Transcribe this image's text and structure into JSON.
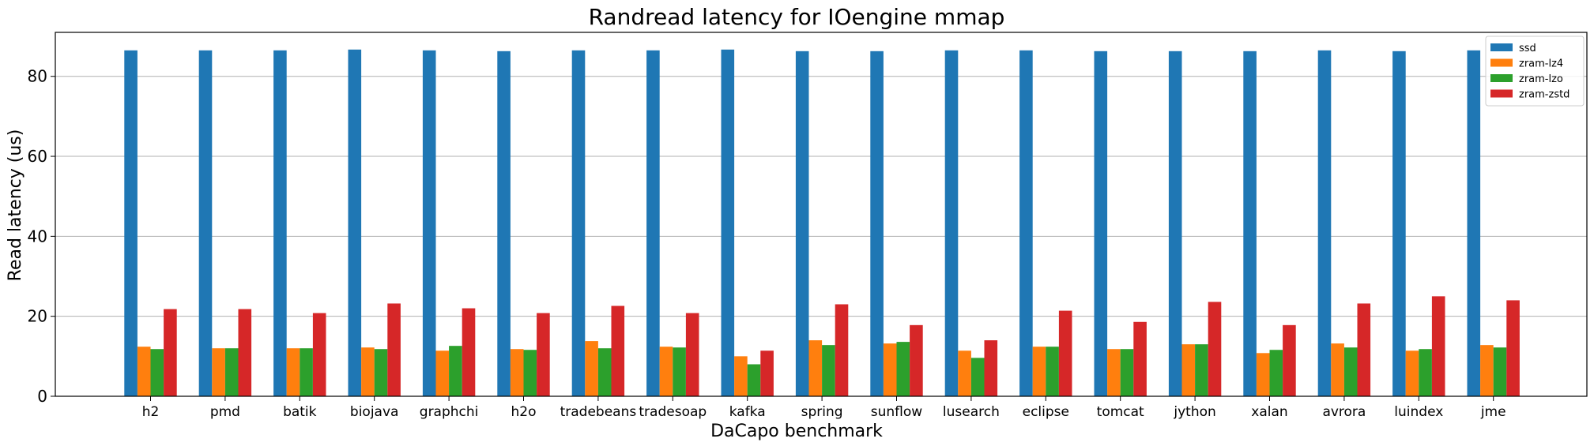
{
  "chart_data": {
    "type": "bar",
    "title": "Randread latency for IOengine mmap",
    "xlabel": "DaCapo benchmark",
    "ylabel": "Read latency (us)",
    "ylim": [
      0,
      91
    ],
    "yticks": [
      0,
      20,
      40,
      60,
      80
    ],
    "grid": "y",
    "legend_position": "top-right",
    "categories": [
      "h2",
      "pmd",
      "batik",
      "biojava",
      "graphchi",
      "h2o",
      "tradebeans",
      "tradesoap",
      "kafka",
      "spring",
      "sunflow",
      "lusearch",
      "eclipse",
      "tomcat",
      "jython",
      "xalan",
      "avrora",
      "luindex",
      "jme"
    ],
    "series": [
      {
        "name": "ssd",
        "color": "#1f77b4",
        "values": [
          86.5,
          86.5,
          86.5,
          86.7,
          86.5,
          86.3,
          86.5,
          86.5,
          86.7,
          86.3,
          86.3,
          86.5,
          86.5,
          86.3,
          86.3,
          86.3,
          86.5,
          86.3,
          86.5
        ]
      },
      {
        "name": "zram-lz4",
        "color": "#ff7f0e",
        "values": [
          12.4,
          12.0,
          12.0,
          12.2,
          11.4,
          11.8,
          13.8,
          12.4,
          10.0,
          14.0,
          13.2,
          11.4,
          12.4,
          11.8,
          13.0,
          10.8,
          13.2,
          11.4,
          12.8
        ]
      },
      {
        "name": "zram-lzo",
        "color": "#2ca02c",
        "values": [
          11.8,
          12.0,
          12.0,
          11.8,
          12.6,
          11.6,
          12.0,
          12.2,
          8.0,
          12.8,
          13.6,
          9.6,
          12.4,
          11.8,
          13.0,
          11.6,
          12.2,
          11.8,
          12.2
        ]
      },
      {
        "name": "zram-zstd",
        "color": "#d62728",
        "values": [
          21.8,
          21.8,
          20.8,
          23.2,
          22.0,
          20.8,
          22.6,
          20.8,
          11.4,
          23.0,
          17.8,
          14.0,
          21.4,
          18.6,
          23.6,
          17.8,
          23.2,
          25.0,
          24.0
        ]
      }
    ]
  }
}
